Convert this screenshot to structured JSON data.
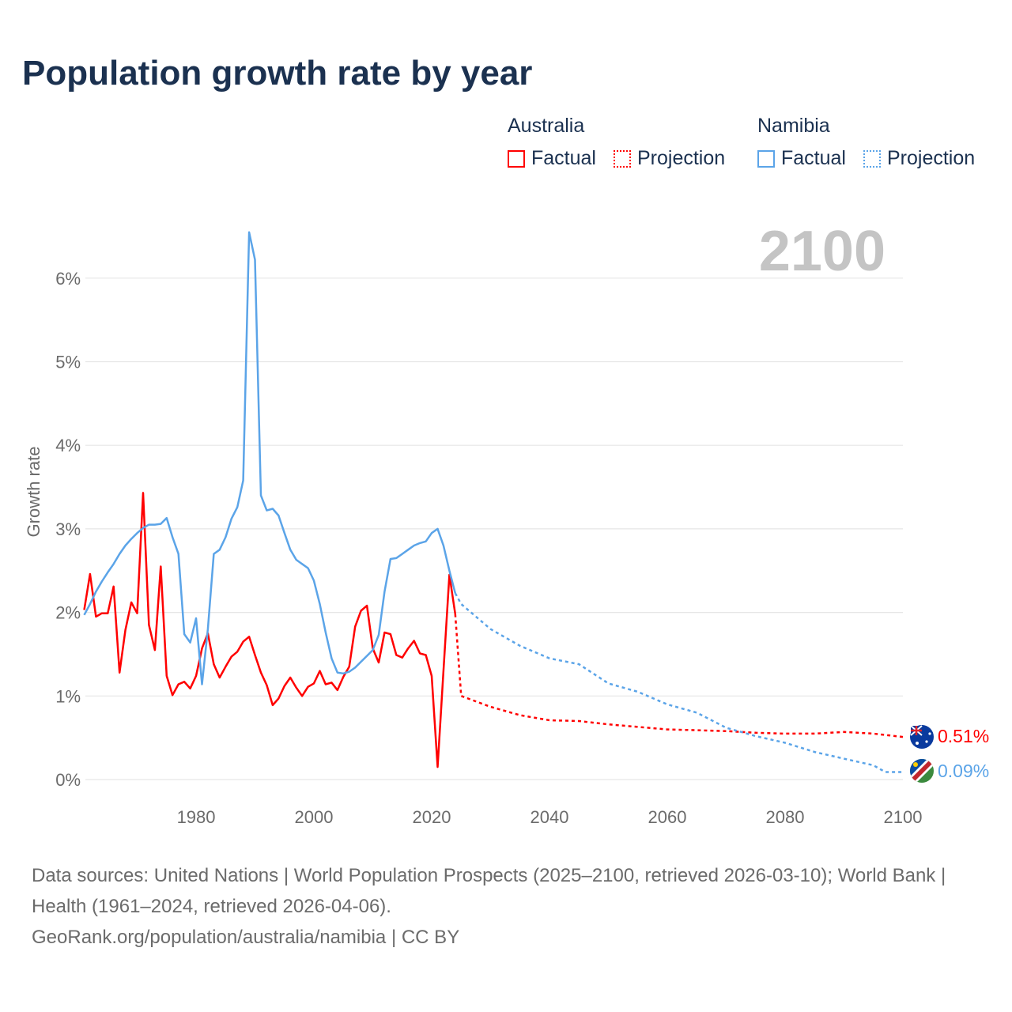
{
  "title": "Population growth rate by year",
  "legend": {
    "groups": [
      {
        "name": "Australia",
        "factual": "Factual",
        "projection": "Projection",
        "color": "#ff0000"
      },
      {
        "name": "Namibia",
        "factual": "Factual",
        "projection": "Projection",
        "color": "#5ba4e8"
      }
    ]
  },
  "year_watermark": "2100",
  "end_labels": {
    "australia": "0.51%",
    "namibia": "0.09%"
  },
  "source": {
    "line1": "Data sources: United Nations | World Population Prospects (2025–2100, retrieved 2026-03-10); World Bank | Health (1961–2024, retrieved 2026-04-06).",
    "line2": "GeoRank.org/population/australia/namibia | CC BY"
  },
  "chart_data": {
    "type": "line",
    "title": "Population growth rate by year",
    "xlabel": "",
    "ylabel": "Growth rate",
    "xlim": [
      1961,
      2100
    ],
    "ylim": [
      0,
      6.6
    ],
    "xticks": [
      1980,
      2000,
      2020,
      2040,
      2060,
      2080,
      2100
    ],
    "yticks": [
      0,
      1,
      2,
      3,
      4,
      5,
      6
    ],
    "ytick_labels": [
      "0%",
      "1%",
      "2%",
      "3%",
      "4%",
      "5%",
      "6%"
    ],
    "grid": true,
    "legend_position": "top-right",
    "series": [
      {
        "name": "Australia Factual",
        "color": "#ff0000",
        "dashed": false,
        "x": [
          1961,
          1962,
          1963,
          1964,
          1965,
          1966,
          1967,
          1968,
          1969,
          1970,
          1971,
          1972,
          1973,
          1974,
          1975,
          1976,
          1977,
          1978,
          1979,
          1980,
          1981,
          1982,
          1983,
          1984,
          1985,
          1986,
          1987,
          1988,
          1989,
          1990,
          1991,
          1992,
          1993,
          1994,
          1995,
          1996,
          1997,
          1998,
          1999,
          2000,
          2001,
          2002,
          2003,
          2004,
          2005,
          2006,
          2007,
          2008,
          2009,
          2010,
          2011,
          2012,
          2013,
          2014,
          2015,
          2016,
          2017,
          2018,
          2019,
          2020,
          2021,
          2022,
          2023,
          2024
        ],
        "y": [
          2.03,
          2.46,
          1.95,
          1.99,
          1.99,
          2.31,
          1.28,
          1.79,
          2.12,
          1.99,
          3.43,
          1.85,
          1.55,
          2.55,
          1.24,
          1.01,
          1.14,
          1.17,
          1.09,
          1.24,
          1.57,
          1.75,
          1.38,
          1.22,
          1.35,
          1.47,
          1.53,
          1.65,
          1.71,
          1.49,
          1.28,
          1.13,
          0.89,
          0.97,
          1.12,
          1.22,
          1.1,
          1.0,
          1.11,
          1.15,
          1.3,
          1.14,
          1.16,
          1.07,
          1.23,
          1.35,
          1.83,
          2.02,
          2.08,
          1.57,
          1.4,
          1.76,
          1.74,
          1.49,
          1.46,
          1.57,
          1.66,
          1.51,
          1.49,
          1.24,
          0.15,
          1.3,
          2.45,
          1.98
        ]
      },
      {
        "name": "Australia Projection",
        "color": "#ff0000",
        "dashed": true,
        "x": [
          2024,
          2025,
          2030,
          2035,
          2040,
          2045,
          2050,
          2055,
          2060,
          2065,
          2070,
          2075,
          2080,
          2085,
          2090,
          2095,
          2100
        ],
        "y": [
          1.98,
          1.0,
          0.87,
          0.77,
          0.71,
          0.7,
          0.66,
          0.63,
          0.6,
          0.59,
          0.58,
          0.56,
          0.55,
          0.55,
          0.57,
          0.55,
          0.51
        ]
      },
      {
        "name": "Namibia Factual",
        "color": "#5ba4e8",
        "dashed": false,
        "x": [
          1961,
          1962,
          1963,
          1964,
          1965,
          1966,
          1967,
          1968,
          1969,
          1970,
          1971,
          1972,
          1973,
          1974,
          1975,
          1976,
          1977,
          1978,
          1979,
          1980,
          1981,
          1982,
          1983,
          1984,
          1985,
          1986,
          1987,
          1988,
          1989,
          1990,
          1991,
          1992,
          1993,
          1994,
          1995,
          1996,
          1997,
          1998,
          1999,
          2000,
          2001,
          2002,
          2003,
          2004,
          2005,
          2006,
          2007,
          2008,
          2009,
          2010,
          2011,
          2012,
          2013,
          2014,
          2015,
          2016,
          2017,
          2018,
          2019,
          2020,
          2021,
          2022,
          2023,
          2024
        ],
        "y": [
          1.97,
          2.1,
          2.25,
          2.37,
          2.48,
          2.58,
          2.7,
          2.8,
          2.88,
          2.95,
          3.01,
          3.05,
          3.05,
          3.06,
          3.13,
          2.9,
          2.7,
          1.74,
          1.64,
          1.93,
          1.14,
          1.8,
          2.7,
          2.75,
          2.9,
          3.12,
          3.26,
          3.58,
          6.55,
          6.22,
          3.4,
          3.22,
          3.24,
          3.16,
          2.95,
          2.75,
          2.63,
          2.58,
          2.53,
          2.38,
          2.1,
          1.76,
          1.45,
          1.28,
          1.27,
          1.29,
          1.34,
          1.41,
          1.48,
          1.55,
          1.73,
          2.25,
          2.64,
          2.65,
          2.7,
          2.75,
          2.8,
          2.83,
          2.85,
          2.95,
          3.0,
          2.8,
          2.5,
          2.23
        ]
      },
      {
        "name": "Namibia Projection",
        "color": "#5ba4e8",
        "dashed": true,
        "x": [
          2024,
          2025,
          2030,
          2035,
          2040,
          2045,
          2050,
          2055,
          2060,
          2065,
          2070,
          2075,
          2080,
          2085,
          2090,
          2095,
          2097,
          2100
        ],
        "y": [
          2.23,
          2.1,
          1.8,
          1.6,
          1.45,
          1.38,
          1.15,
          1.05,
          0.9,
          0.8,
          0.62,
          0.52,
          0.44,
          0.33,
          0.25,
          0.17,
          0.09,
          0.09
        ]
      }
    ]
  }
}
